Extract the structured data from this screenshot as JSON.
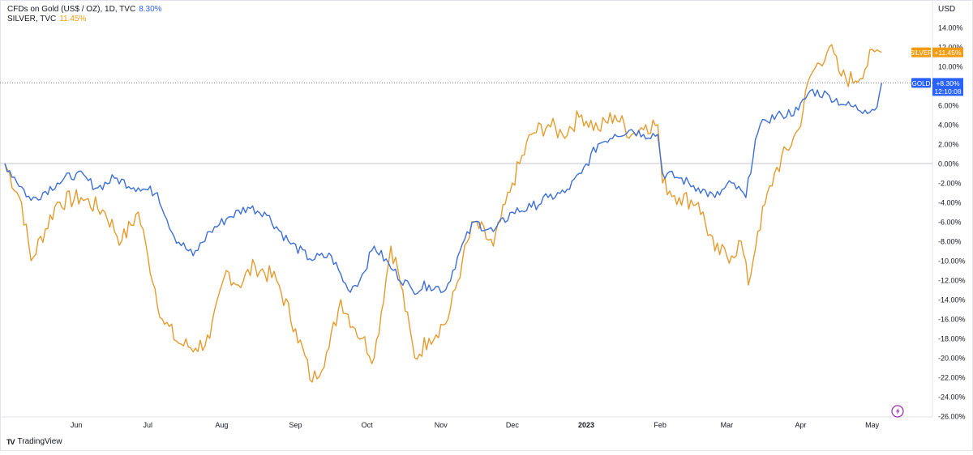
{
  "legend": {
    "gold": {
      "label": "CFDs on Gold (US$ / OZ), 1D, TVC",
      "value": "8.30%",
      "color": "#2962ff"
    },
    "silver": {
      "label": "SILVER, TVC",
      "value": "11.45%",
      "color": "#f39c12"
    }
  },
  "currency": "USD",
  "price_tags": {
    "silver": {
      "name": "SILVER",
      "value": "+11.45%"
    },
    "gold": {
      "name": "GOLD",
      "value": "+8.30%",
      "countdown": "12:10:08"
    }
  },
  "brand": {
    "logo": "TV",
    "text": "TradingView"
  },
  "colors": {
    "gold": "#3d6fd6",
    "silver": "#e69b2e",
    "gold_tag": "#2962ff",
    "silver_tag": "#f39c12",
    "axis_text": "#131722"
  },
  "icons": {
    "replay": "lightning-icon"
  },
  "chart_data": {
    "type": "line",
    "x_tick_labels": [
      "Jun",
      "Jul",
      "Aug",
      "Sep",
      "Oct",
      "Nov",
      "Dec",
      "2023",
      "Feb",
      "Mar",
      "Apr",
      "May"
    ],
    "x_range": [
      "2022-05-02",
      "2023-05-12"
    ],
    "ylim": [
      -26,
      14
    ],
    "y_ticks": [
      "14.00%",
      "12.00%",
      "10.00%",
      "8.00%",
      "6.00%",
      "4.00%",
      "2.00%",
      "0.00%",
      "-2.00%",
      "-4.00%",
      "-6.00%",
      "-8.00%",
      "-10.00%",
      "-12.00%",
      "-14.00%",
      "-16.00%",
      "-18.00%",
      "-20.00%",
      "-22.00%",
      "-24.00%",
      "-26.00%"
    ],
    "y_unit": "%",
    "series": [
      {
        "name": "GOLD",
        "x": [
          "2022-05-02",
          "2022-05-13",
          "2022-05-24",
          "2022-06-01",
          "2022-06-10",
          "2022-06-17",
          "2022-06-27",
          "2022-07-05",
          "2022-07-12",
          "2022-07-20",
          "2022-07-27",
          "2022-08-04",
          "2022-08-12",
          "2022-08-19",
          "2022-08-29",
          "2022-09-07",
          "2022-09-16",
          "2022-09-23",
          "2022-09-28",
          "2022-10-04",
          "2022-10-12",
          "2022-10-20",
          "2022-10-27",
          "2022-11-03",
          "2022-11-09",
          "2022-11-15",
          "2022-11-23",
          "2022-12-01",
          "2022-12-09",
          "2022-12-16",
          "2022-12-23",
          "2022-12-30",
          "2023-01-06",
          "2023-01-13",
          "2023-01-20",
          "2023-01-25",
          "2023-01-31",
          "2023-02-02",
          "2023-02-09",
          "2023-02-17",
          "2023-02-24",
          "2023-03-03",
          "2023-03-09",
          "2023-03-13",
          "2023-03-17",
          "2023-03-24",
          "2023-03-31",
          "2023-04-05",
          "2023-04-13",
          "2023-04-20",
          "2023-04-28",
          "2023-05-03",
          "2023-05-05"
        ],
        "values": [
          0.0,
          -3.8,
          -2.0,
          -1.0,
          -2.5,
          -1.5,
          -2.5,
          -3.0,
          -7.5,
          -9.5,
          -7.0,
          -5.5,
          -4.5,
          -5.0,
          -8.0,
          -9.8,
          -9.5,
          -13.0,
          -12.0,
          -8.5,
          -11.0,
          -13.0,
          -12.5,
          -13.0,
          -9.0,
          -6.0,
          -7.0,
          -5.0,
          -4.5,
          -3.5,
          -3.0,
          -1.0,
          2.0,
          3.0,
          3.5,
          3.0,
          3.0,
          -1.0,
          -1.5,
          -2.5,
          -3.5,
          -2.0,
          -3.5,
          2.5,
          4.5,
          5.0,
          5.5,
          7.5,
          7.0,
          6.0,
          5.5,
          5.8,
          8.3
        ]
      },
      {
        "name": "SILVER",
        "x": [
          "2022-05-02",
          "2022-05-09",
          "2022-05-13",
          "2022-05-24",
          "2022-06-03",
          "2022-06-13",
          "2022-06-20",
          "2022-06-27",
          "2022-07-01",
          "2022-07-07",
          "2022-07-14",
          "2022-07-21",
          "2022-07-27",
          "2022-08-03",
          "2022-08-08",
          "2022-08-15",
          "2022-08-24",
          "2022-09-01",
          "2022-09-08",
          "2022-09-15",
          "2022-09-20",
          "2022-09-26",
          "2022-09-29",
          "2022-10-04",
          "2022-10-11",
          "2022-10-14",
          "2022-10-21",
          "2022-10-27",
          "2022-11-04",
          "2022-11-10",
          "2022-11-15",
          "2022-11-23",
          "2022-12-01",
          "2022-12-09",
          "2022-12-16",
          "2022-12-22",
          "2022-12-30",
          "2023-01-06",
          "2023-01-13",
          "2023-01-20",
          "2023-01-26",
          "2023-01-31",
          "2023-02-02",
          "2023-02-09",
          "2023-02-17",
          "2023-02-24",
          "2023-03-03",
          "2023-03-07",
          "2023-03-10",
          "2023-03-14",
          "2023-03-21",
          "2023-03-31",
          "2023-04-05",
          "2023-04-13",
          "2023-04-18",
          "2023-04-24",
          "2023-05-02",
          "2023-05-05"
        ],
        "values": [
          0.0,
          -4.0,
          -10.0,
          -4.0,
          -3.5,
          -5.0,
          -8.0,
          -5.0,
          -9.5,
          -16.0,
          -18.5,
          -19.0,
          -18.0,
          -11.0,
          -12.5,
          -10.5,
          -12.0,
          -17.0,
          -22.5,
          -19.0,
          -14.0,
          -17.0,
          -18.0,
          -20.0,
          -8.5,
          -11.0,
          -20.0,
          -18.0,
          -16.0,
          -10.0,
          -6.0,
          -8.5,
          -2.0,
          3.0,
          4.0,
          3.0,
          5.0,
          3.5,
          5.0,
          3.0,
          4.0,
          4.0,
          -2.0,
          -3.5,
          -4.0,
          -9.0,
          -9.5,
          -8.0,
          -12.5,
          -7.0,
          -1.0,
          3.5,
          9.0,
          12.0,
          9.0,
          8.5,
          11.5,
          11.45
        ]
      }
    ],
    "reference_line": 8.3,
    "grid": false
  }
}
